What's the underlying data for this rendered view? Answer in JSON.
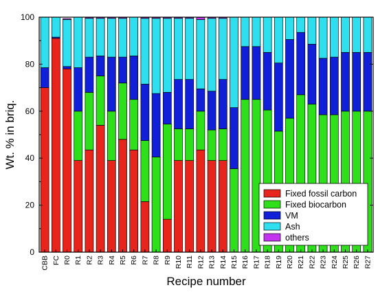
{
  "chart_data": {
    "type": "bar",
    "stacked": true,
    "xlabel": "Recipe number",
    "ylabel": "Wt. % in briq.",
    "ylim": [
      0,
      100
    ],
    "yticks": [
      0,
      20,
      40,
      60,
      80,
      100
    ],
    "categories": [
      "CBB",
      "FC",
      "R0",
      "R1",
      "R2",
      "R3",
      "R4",
      "R5",
      "R6",
      "R7",
      "R8",
      "R9",
      "R10",
      "R11",
      "R12",
      "R13",
      "R14",
      "R15",
      "R16",
      "R17",
      "R18",
      "R19",
      "R20",
      "R21",
      "R22",
      "R23",
      "R24",
      "R25",
      "R26",
      "R27"
    ],
    "series": [
      {
        "name": "Fixed fossil carbon",
        "color": "#e8251c",
        "values": [
          70,
          91,
          78,
          39,
          43.5,
          54,
          39,
          48,
          43.5,
          21.5,
          0,
          14,
          39,
          39,
          43.5,
          39,
          39,
          0,
          0,
          0,
          0,
          0,
          0,
          0,
          0,
          0,
          0,
          0,
          0,
          0
        ]
      },
      {
        "name": "Fixed biocarbon",
        "color": "#2ee01a",
        "values": [
          0,
          0,
          0,
          21,
          24.5,
          21,
          21,
          24,
          21.5,
          26,
          40.5,
          40.5,
          13.5,
          13.5,
          16.5,
          13,
          13.5,
          35.5,
          65,
          65,
          60.5,
          51.5,
          57,
          67,
          63,
          58.5,
          58.5,
          60,
          60,
          60
        ]
      },
      {
        "name": "VM",
        "color": "#1020d8",
        "values": [
          8.5,
          0.5,
          1,
          18.5,
          15,
          8.5,
          23,
          11,
          18.5,
          24,
          27,
          13.5,
          21,
          21,
          9.5,
          16.5,
          21,
          26,
          22.5,
          22.5,
          24.5,
          29,
          33.5,
          26.5,
          25.5,
          24,
          24.5,
          25,
          25,
          25
        ]
      },
      {
        "name": "Ash",
        "color": "#2edff0",
        "values": [
          21.5,
          8.5,
          20,
          21.5,
          16.5,
          16,
          16.5,
          16.5,
          16.5,
          28,
          32,
          31.5,
          26,
          26,
          29.5,
          31,
          26,
          38.5,
          12.5,
          12.5,
          15,
          19.5,
          9.5,
          6.5,
          11.5,
          17.5,
          17,
          15,
          15,
          15
        ]
      },
      {
        "name": "others",
        "color": "#c433f0",
        "values": [
          0,
          0,
          0.4,
          0.4,
          0.4,
          0.4,
          0.4,
          0.4,
          0.4,
          0.4,
          0.4,
          0.4,
          0.4,
          0.4,
          0.9,
          0.4,
          0.4,
          0,
          0,
          0,
          0,
          0,
          0,
          0,
          0,
          0,
          0,
          0,
          0,
          0
        ]
      }
    ],
    "legend_position": "bottom-right"
  }
}
